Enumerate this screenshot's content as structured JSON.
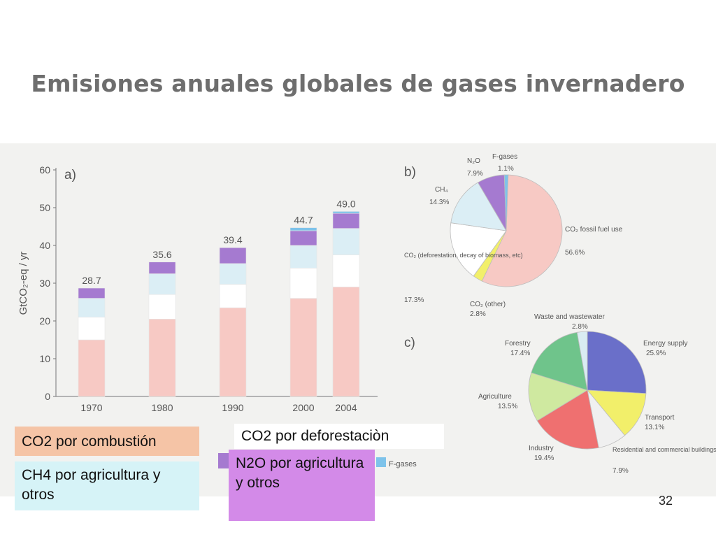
{
  "title": "Emisiones anuales globales de gases invernadero",
  "colors": {
    "co2_fossil": "#f7c9c4",
    "co2_deforestation": "#ffffff",
    "ch4": "#dbeef5",
    "n2o": "#a57ad0",
    "fgases": "#7ec3ea",
    "energy": "#6a6fc9",
    "transport": "#f2ef6a",
    "residential": "#f0f0f0",
    "industry": "#ef7070",
    "agriculture": "#cfe9a0",
    "forestry": "#6fc48b",
    "waste": "#d9ecf2"
  },
  "chart_data": [
    {
      "type": "bar",
      "panel_label": "a)",
      "ylabel": "GtCO₂-eq / yr",
      "ylim": [
        0,
        60
      ],
      "yticks": [
        "0",
        "10",
        "20",
        "30",
        "40",
        "50",
        "60"
      ],
      "categories": [
        "1970",
        "1980",
        "1990",
        "2000",
        "2004"
      ],
      "totals": [
        "28.7",
        "35.6",
        "39.4",
        "44.7",
        "49.0"
      ],
      "series": [
        {
          "values": [
            15.0,
            20.5,
            23.5,
            26.0,
            29.0
          ]
        },
        {
          "values": [
            6.0,
            6.5,
            6.2,
            8.0,
            8.5
          ]
        },
        {
          "values": [
            5.0,
            5.5,
            5.5,
            6.0,
            7.0
          ]
        },
        {
          "values": [
            2.7,
            3.1,
            4.2,
            3.9,
            4.0
          ]
        },
        {
          "values": [
            0,
            0,
            0,
            0.8,
            0.5
          ]
        }
      ]
    },
    {
      "type": "pie",
      "panel_label": "b)",
      "slices": [
        {
          "label": "CO₂ fossil fuel use",
          "value": 56.6,
          "value_label": "56.6%",
          "color_key": "co2_fossil"
        },
        {
          "label": "CO₂ (other)",
          "value": 2.8,
          "value_label": "2.8%",
          "color_key": "transport"
        },
        {
          "label": "CO₂ (deforestation, decay of biomass, etc)",
          "value": 17.3,
          "value_label": "17.3%",
          "color_key": "co2_deforestation"
        },
        {
          "label": "CH₄",
          "value": 14.3,
          "value_label": "14.3%",
          "color_key": "ch4"
        },
        {
          "label": "N₂O",
          "value": 7.9,
          "value_label": "7.9%",
          "color_key": "n2o"
        },
        {
          "label": "F-gases",
          "value": 1.1,
          "value_label": "1.1%",
          "color_key": "fgases"
        }
      ]
    },
    {
      "type": "pie",
      "panel_label": "c)",
      "slices": [
        {
          "label": "Energy supply",
          "value": 25.9,
          "value_label": "25.9%",
          "color_key": "energy"
        },
        {
          "label": "Transport",
          "value": 13.1,
          "value_label": "13.1%",
          "color_key": "transport"
        },
        {
          "label": "Residential and commercial buildings",
          "value": 7.9,
          "value_label": "7.9%",
          "color_key": "residential"
        },
        {
          "label": "Industry",
          "value": 19.4,
          "value_label": "19.4%",
          "color_key": "industry"
        },
        {
          "label": "Agriculture",
          "value": 13.5,
          "value_label": "13.5%",
          "color_key": "agriculture"
        },
        {
          "label": "Forestry",
          "value": 17.4,
          "value_label": "17.4%",
          "color_key": "forestry"
        },
        {
          "label": "Waste and wastewater",
          "value": 2.8,
          "value_label": "2.8%",
          "color_key": "waste"
        }
      ]
    }
  ],
  "legend_overlay": {
    "co2_combustion": "CO2 por combustión",
    "co2_deforestation": "CO2 por deforestaciòn",
    "ch4": "CH4 por agricultura y otros",
    "n2o": "N2O por agricultura y otros",
    "fgases": "F-gases"
  },
  "page_number": "32"
}
